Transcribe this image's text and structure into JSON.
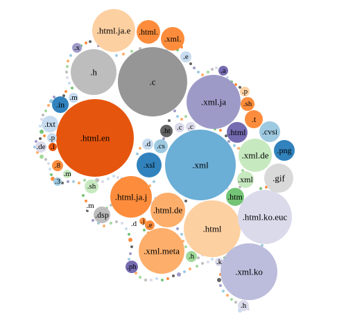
{
  "chart_data": {
    "type": "bubble",
    "title": "",
    "bubbles": [
      {
        "label": ".html.ja.e",
        "color": "#fdd0a2"
      },
      {
        "label": ".html.",
        "color": "#fd8d3c"
      },
      {
        "label": ".xml.",
        "color": "#fd8d3c"
      },
      {
        "label": ".x",
        "color": "#9e9ac8"
      },
      {
        "label": ".h",
        "color": "#bdbdbd"
      },
      {
        "label": ".c",
        "color": "#969696"
      },
      {
        "label": ".e",
        "color": "#c6dbef"
      },
      {
        "label": ".m",
        "color": "#c6dbef"
      },
      {
        "label": ".in",
        "color": "#3182bd"
      },
      {
        "label": ".a",
        "color": "#756bb1"
      },
      {
        "label": ".xml.ja",
        "color": "#9e9ac8"
      },
      {
        "label": ".p",
        "color": "#fdd0a2"
      },
      {
        "label": ".sh",
        "color": "#fd8d3c"
      },
      {
        "label": ".t",
        "color": "#fd8d3c"
      },
      {
        "label": ".txt",
        "color": "#c6dbef"
      },
      {
        "label": ".html.en",
        "color": "#e6550d"
      },
      {
        "label": ".ht",
        "color": "#636363"
      },
      {
        "label": ".c",
        "color": "#dadaeb"
      },
      {
        "label": ".c",
        "color": "#dadaeb"
      },
      {
        "label": ".html",
        "color": "#756bb1"
      },
      {
        "label": ".cvsi",
        "color": "#9ecae1"
      },
      {
        "label": ".p",
        "color": "#c6dbef"
      },
      {
        "label": ".d",
        "color": "#c6dbef"
      },
      {
        "label": ".cs",
        "color": "#9ecae1"
      },
      {
        "label": ".de",
        "color": "#dadaeb"
      },
      {
        "label": ".l",
        "color": "#e6550d"
      },
      {
        "label": ".xml.de",
        "color": "#c7e9c0"
      },
      {
        "label": ".png",
        "color": "#3182bd"
      },
      {
        "label": ".xsl",
        "color": "#3182bd"
      },
      {
        "label": ".xml",
        "color": "#6baed6"
      },
      {
        "label": ".8",
        "color": "#fd8d3c"
      },
      {
        "label": ".xml",
        "color": "#c7e9c0"
      },
      {
        "label": ".gif",
        "color": "#d9d9d9"
      },
      {
        "label": ".m",
        "color": "#c7e9c0"
      },
      {
        "label": ".3",
        "color": "#9ecae1"
      },
      {
        "label": ".sh",
        "color": "#c7e9c0"
      },
      {
        "label": ".html.ja.j",
        "color": "#fd8d3c"
      },
      {
        "label": ".htm",
        "color": "#74c476"
      },
      {
        "label": ".m",
        "color": "#ffffff"
      },
      {
        "label": ".html.de",
        "color": "#fdae6b"
      },
      {
        "label": ".dsp",
        "color": "#bdbdbd"
      },
      {
        "label": ".html",
        "color": "#fdd0a2"
      },
      {
        "label": ".html.ko.euc",
        "color": "#dadaeb"
      },
      {
        "label": ".d",
        "color": "#ffffff"
      },
      {
        "label": ".j",
        "color": "#fd8d3c"
      },
      {
        "label": ".e",
        "color": "#fd8d3c"
      },
      {
        "label": ".xml.meta",
        "color": "#fdae6b"
      },
      {
        "label": ".h",
        "color": "#a1d99b"
      },
      {
        "label": ".k",
        "color": "#dadaeb"
      },
      {
        "label": ".ph",
        "color": "#756bb1"
      },
      {
        "label": ".xml.ko",
        "color": "#bcbddc"
      },
      {
        "label": ".h",
        "color": "#dadaeb"
      }
    ],
    "colors": {
      "orange_dark": "#e6550d",
      "orange": "#fd8d3c",
      "orange_light": "#fdae6b",
      "orange_pale": "#fdd0a2",
      "blue_dark": "#3182bd",
      "blue": "#6baed6",
      "blue_light": "#9ecae1",
      "blue_pale": "#c6dbef",
      "purple_dark": "#756bb1",
      "purple": "#9e9ac8",
      "purple_light": "#bcbddc",
      "purple_pale": "#dadaeb",
      "green": "#74c476",
      "green_light": "#a1d99b",
      "green_pale": "#c7e9c0",
      "gray_dark": "#636363",
      "gray": "#969696",
      "gray_light": "#bdbdbd",
      "gray_pale": "#d9d9d9"
    },
    "legend": "none",
    "grid": false
  }
}
